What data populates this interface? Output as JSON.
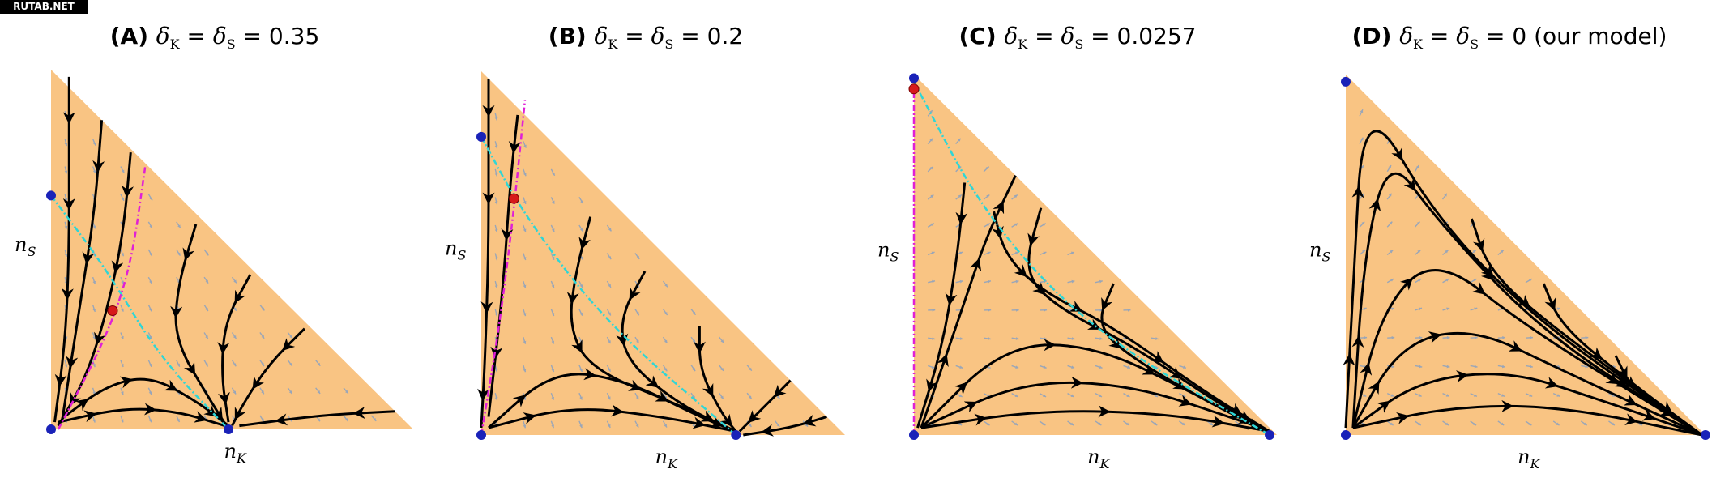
{
  "watermark": "RUTAB.NET",
  "panels": [
    {
      "label": "(A)",
      "delta_eq": "= 0.35",
      "suffix": "",
      "xlabel": "K",
      "ylabel": "S"
    },
    {
      "label": "(B)",
      "delta_eq": "= 0.2",
      "suffix": "",
      "xlabel": "K",
      "ylabel": "S"
    },
    {
      "label": "(C)",
      "delta_eq": "= 0.0257",
      "suffix": "",
      "xlabel": "K",
      "ylabel": "S"
    },
    {
      "label": "(D)",
      "delta_eq": "= 0",
      "suffix": " (our model)",
      "xlabel": "K",
      "ylabel": "S"
    }
  ],
  "colors": {
    "region": "#f9c483",
    "trajectory": "#000000",
    "field_arrow": "#9aa6b8",
    "stable_manifold": "#2fd6d6",
    "separatrix": "#e020d6",
    "fixed_point": "#1a22b8",
    "saddle_point": "#d61a1a"
  }
}
